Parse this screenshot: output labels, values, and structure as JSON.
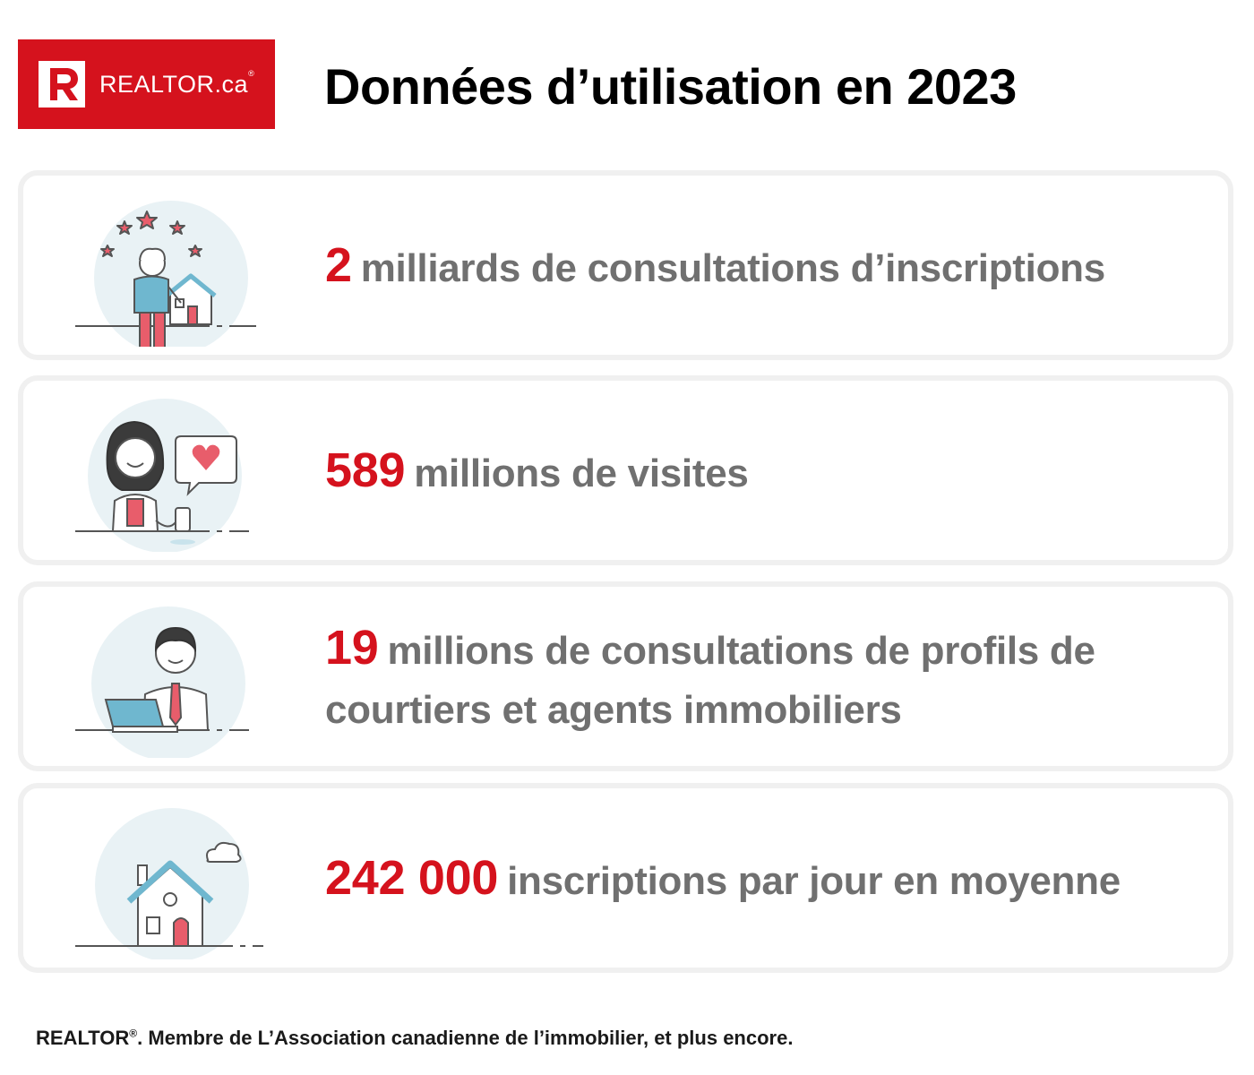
{
  "header": {
    "logo": {
      "brand": "REALTOR",
      "suffix": ".ca",
      "mark": "R",
      "registered": "®"
    },
    "title": "Données d’utilisation en 2023"
  },
  "stats": [
    {
      "number": "2",
      "text": "milliards de consultations d’inscriptions",
      "icon": "agent-with-house-and-stars-icon"
    },
    {
      "number": "589",
      "text": "millions de visites",
      "icon": "woman-with-heart-message-icon"
    },
    {
      "number": "19",
      "text": "millions de consultations de profils de courtiers et agents immobiliers",
      "icon": "man-with-laptop-icon"
    },
    {
      "number": "242 000",
      "text": "inscriptions par jour en moyenne",
      "icon": "house-with-cloud-icon"
    }
  ],
  "footer": {
    "brand": "REALTOR",
    "registered": "®",
    "text": ". Membre de L’Association canadienne de l’immobilier, et plus encore."
  },
  "colors": {
    "brand_red": "#d5121d",
    "stat_gray": "#707070",
    "card_border": "#f0f0f0",
    "illus_circle": "#e9f2f5",
    "illus_blue": "#6fb7cf"
  }
}
